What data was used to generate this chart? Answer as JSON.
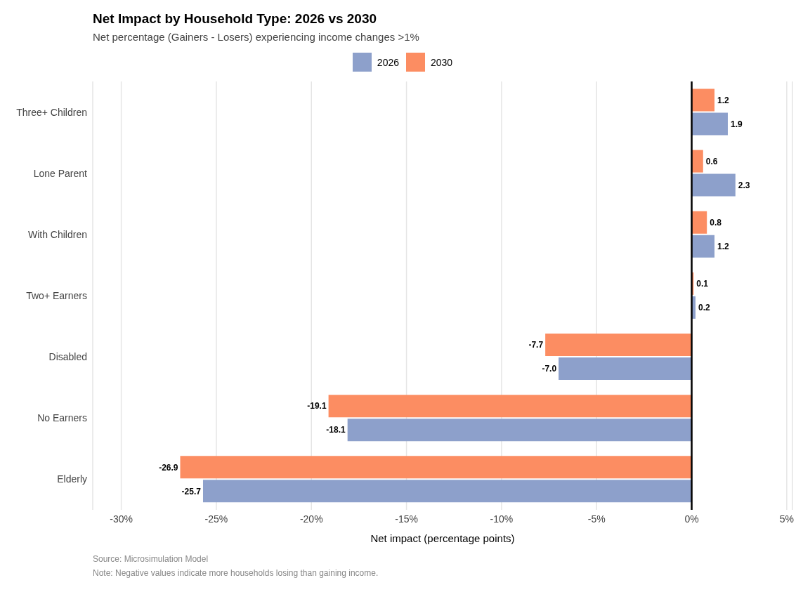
{
  "chart_data": {
    "type": "bar",
    "orientation": "horizontal",
    "title": "Net Impact by Household Type: 2026 vs 2030",
    "subtitle": "Net percentage (Gainers - Losers) experiencing income changes >1%",
    "xlabel": "Net impact (percentage points)",
    "categories": [
      "Three+ Children",
      "Lone Parent",
      "With Children",
      "Two+ Earners",
      "Disabled",
      "No Earners",
      "Elderly"
    ],
    "series": [
      {
        "name": "2026",
        "color": "#8da0cb",
        "values": [
          1.9,
          2.3,
          1.2,
          0.2,
          -7.0,
          -18.1,
          -25.7
        ],
        "value_labels": [
          "1.9",
          "2.3",
          "1.2",
          "0.2",
          "-7.0",
          "-18.1",
          "-25.7"
        ]
      },
      {
        "name": "2030",
        "color": "#fc8d62",
        "values": [
          1.2,
          0.6,
          0.8,
          0.1,
          -7.7,
          -19.1,
          -26.9
        ],
        "value_labels": [
          "1.2",
          "0.6",
          "0.8",
          "0.1",
          "-7.7",
          "-19.1",
          "-26.9"
        ]
      }
    ],
    "xlim": [
      -31.5,
      5.3
    ],
    "xticks": [
      {
        "value": -30,
        "label": "-30%"
      },
      {
        "value": -25,
        "label": "-25%"
      },
      {
        "value": -20,
        "label": "-20%"
      },
      {
        "value": -15,
        "label": "-15%"
      },
      {
        "value": -10,
        "label": "-10%"
      },
      {
        "value": -5,
        "label": "-5%"
      },
      {
        "value": 0,
        "label": "0%"
      },
      {
        "value": 5,
        "label": "5%"
      }
    ],
    "ref_lines": [
      {
        "axis": "x",
        "value": 0,
        "color": "#000000"
      }
    ],
    "grid": "x",
    "legend": "top",
    "annotations": [
      "Source: Microsimulation Model",
      "Note: Negative values indicate more households losing than gaining income."
    ]
  }
}
